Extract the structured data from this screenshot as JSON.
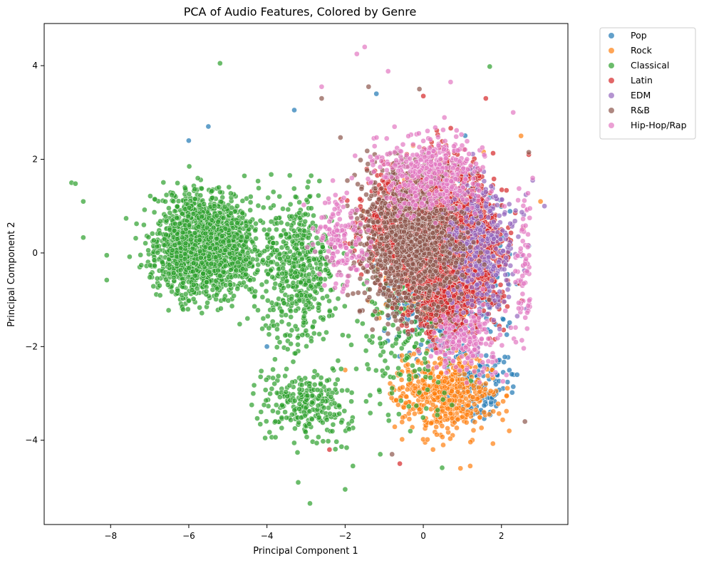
{
  "chart_data": {
    "type": "scatter",
    "title": "PCA of Audio Features, Colored by Genre",
    "xlabel": "Principal Component 1",
    "ylabel": "Principal Component 2",
    "xlim": [
      -9.7,
      3.7
    ],
    "ylim": [
      -5.8,
      4.9
    ],
    "xticks": [
      -8,
      -6,
      -4,
      -2,
      0,
      2
    ],
    "yticks": [
      -4,
      -2,
      0,
      2,
      4
    ],
    "xtick_labels": [
      "−8",
      "−6",
      "−4",
      "−2",
      "0",
      "2"
    ],
    "ytick_labels": [
      "−4",
      "−2",
      "0",
      "2",
      "4"
    ],
    "grid": false,
    "legend_position": "outside upper right",
    "marker_alpha": 0.7,
    "series": [
      {
        "name": "Pop",
        "color": "#1f77b4",
        "clusters": [
          {
            "cx": 0.6,
            "cy": -0.4,
            "sx": 1.3,
            "sy": 1.5,
            "n": 900
          },
          {
            "cx": 1.4,
            "cy": -2.8,
            "sx": 0.8,
            "sy": 0.7,
            "n": 140
          }
        ],
        "outliers": [
          [
            -5.5,
            2.7
          ],
          [
            -3.3,
            3.05
          ],
          [
            -6.0,
            2.4
          ],
          [
            -1.2,
            3.4
          ],
          [
            -4.0,
            -2.0
          ],
          [
            2.4,
            -2.6
          ],
          [
            2.7,
            0.15
          ]
        ]
      },
      {
        "name": "Rock",
        "color": "#ff7f0e",
        "clusters": [
          {
            "cx": 0.6,
            "cy": -3.0,
            "sx": 1.1,
            "sy": 0.8,
            "n": 520
          },
          {
            "cx": 0.3,
            "cy": 0.2,
            "sx": 1.2,
            "sy": 1.4,
            "n": 300
          }
        ],
        "outliers": [
          [
            1.2,
            -4.55
          ],
          [
            0.95,
            -4.6
          ],
          [
            2.5,
            2.5
          ],
          [
            3.0,
            1.1
          ],
          [
            2.2,
            -3.8
          ],
          [
            -2.0,
            -2.5
          ]
        ]
      },
      {
        "name": "Classical",
        "color": "#2ca02c",
        "clusters": [
          {
            "cx": -5.6,
            "cy": 0.2,
            "sx": 1.15,
            "sy": 0.95,
            "n": 1800
          },
          {
            "cx": -3.2,
            "cy": -0.3,
            "sx": 1.0,
            "sy": 1.4,
            "n": 500
          },
          {
            "cx": -3.0,
            "cy": -3.2,
            "sx": 1.1,
            "sy": 0.7,
            "n": 260
          },
          {
            "cx": -0.5,
            "cy": -1.8,
            "sx": 1.2,
            "sy": 1.6,
            "n": 160
          }
        ],
        "outliers": [
          [
            -5.2,
            4.05
          ],
          [
            1.7,
            3.98
          ],
          [
            -9.0,
            1.5
          ],
          [
            -8.9,
            1.48
          ],
          [
            -8.7,
            1.1
          ],
          [
            -8.7,
            0.33
          ],
          [
            -8.1,
            -0.58
          ],
          [
            -8.1,
            -0.05
          ],
          [
            -3.2,
            -4.9
          ],
          [
            -2.9,
            -5.35
          ],
          [
            -2.0,
            -5.05
          ],
          [
            -1.8,
            -4.55
          ],
          [
            -1.1,
            -4.3
          ]
        ]
      },
      {
        "name": "Latin",
        "color": "#d62728",
        "clusters": [
          {
            "cx": 0.7,
            "cy": 0.1,
            "sx": 1.05,
            "sy": 1.45,
            "n": 3200
          },
          {
            "cx": -0.6,
            "cy": 0.7,
            "sx": 1.0,
            "sy": 1.0,
            "n": 500
          }
        ],
        "outliers": [
          [
            -2.4,
            -4.2
          ],
          [
            -0.6,
            -4.5
          ],
          [
            1.6,
            3.3
          ],
          [
            0.0,
            3.35
          ],
          [
            2.7,
            2.1
          ]
        ]
      },
      {
        "name": "EDM",
        "color": "#9467bd",
        "clusters": [
          {
            "cx": 1.4,
            "cy": 0.2,
            "sx": 0.9,
            "sy": 1.3,
            "n": 380
          }
        ],
        "outliers": [
          [
            3.1,
            1.0
          ],
          [
            2.8,
            1.55
          ]
        ]
      },
      {
        "name": "R&B",
        "color": "#8c564b",
        "clusters": [
          {
            "cx": -0.3,
            "cy": 0.3,
            "sx": 1.25,
            "sy": 1.4,
            "n": 1100
          }
        ],
        "outliers": [
          [
            -1.4,
            3.55
          ],
          [
            2.7,
            2.15
          ],
          [
            2.6,
            -3.6
          ],
          [
            -2.6,
            3.3
          ],
          [
            -0.1,
            3.5
          ],
          [
            -0.8,
            -4.3
          ]
        ]
      },
      {
        "name": "Hip-Hop/Rap",
        "color": "#e377c2",
        "clusters": [
          {
            "cx": 0.2,
            "cy": 1.7,
            "sx": 1.3,
            "sy": 0.75,
            "n": 420
          },
          {
            "cx": -2.1,
            "cy": 0.3,
            "sx": 0.6,
            "sy": 0.9,
            "n": 160
          },
          {
            "cx": 1.1,
            "cy": -1.9,
            "sx": 0.9,
            "sy": 0.6,
            "n": 200
          },
          {
            "cx": 2.6,
            "cy": -0.3,
            "sx": 0.2,
            "sy": 1.3,
            "n": 70
          }
        ],
        "outliers": [
          [
            -1.7,
            4.25
          ],
          [
            -1.5,
            4.4
          ],
          [
            -0.9,
            3.88
          ],
          [
            -2.6,
            3.55
          ],
          [
            0.7,
            3.65
          ],
          [
            2.3,
            3.0
          ],
          [
            2.8,
            1.6
          ]
        ]
      }
    ]
  }
}
